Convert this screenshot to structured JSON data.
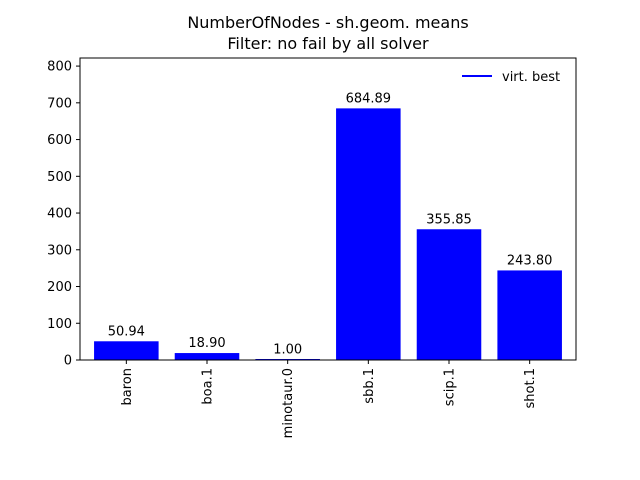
{
  "chart_data": {
    "type": "bar",
    "title": "NumberOfNodes - sh.geom. means",
    "subtitle": "Filter: no fail by all solver",
    "xlabel": "",
    "ylabel": "",
    "categories": [
      "baron",
      "boa.1",
      "minotaur.0",
      "sbb.1",
      "scip.1",
      "shot.1"
    ],
    "values": [
      50.94,
      18.9,
      1.0,
      684.89,
      355.85,
      243.8
    ],
    "data_labels": [
      "50.94",
      "18.90",
      "1.00",
      "684.89",
      "355.85",
      "243.80"
    ],
    "ylim": [
      0,
      822
    ],
    "yticks": [
      0,
      100,
      200,
      300,
      400,
      500,
      600,
      700,
      800
    ],
    "grid": false,
    "bar_color": "#0000ff",
    "legend": {
      "position": "top-right",
      "entries": [
        {
          "label": "virt. best",
          "color": "#0000ff",
          "marker": "line"
        }
      ]
    }
  }
}
